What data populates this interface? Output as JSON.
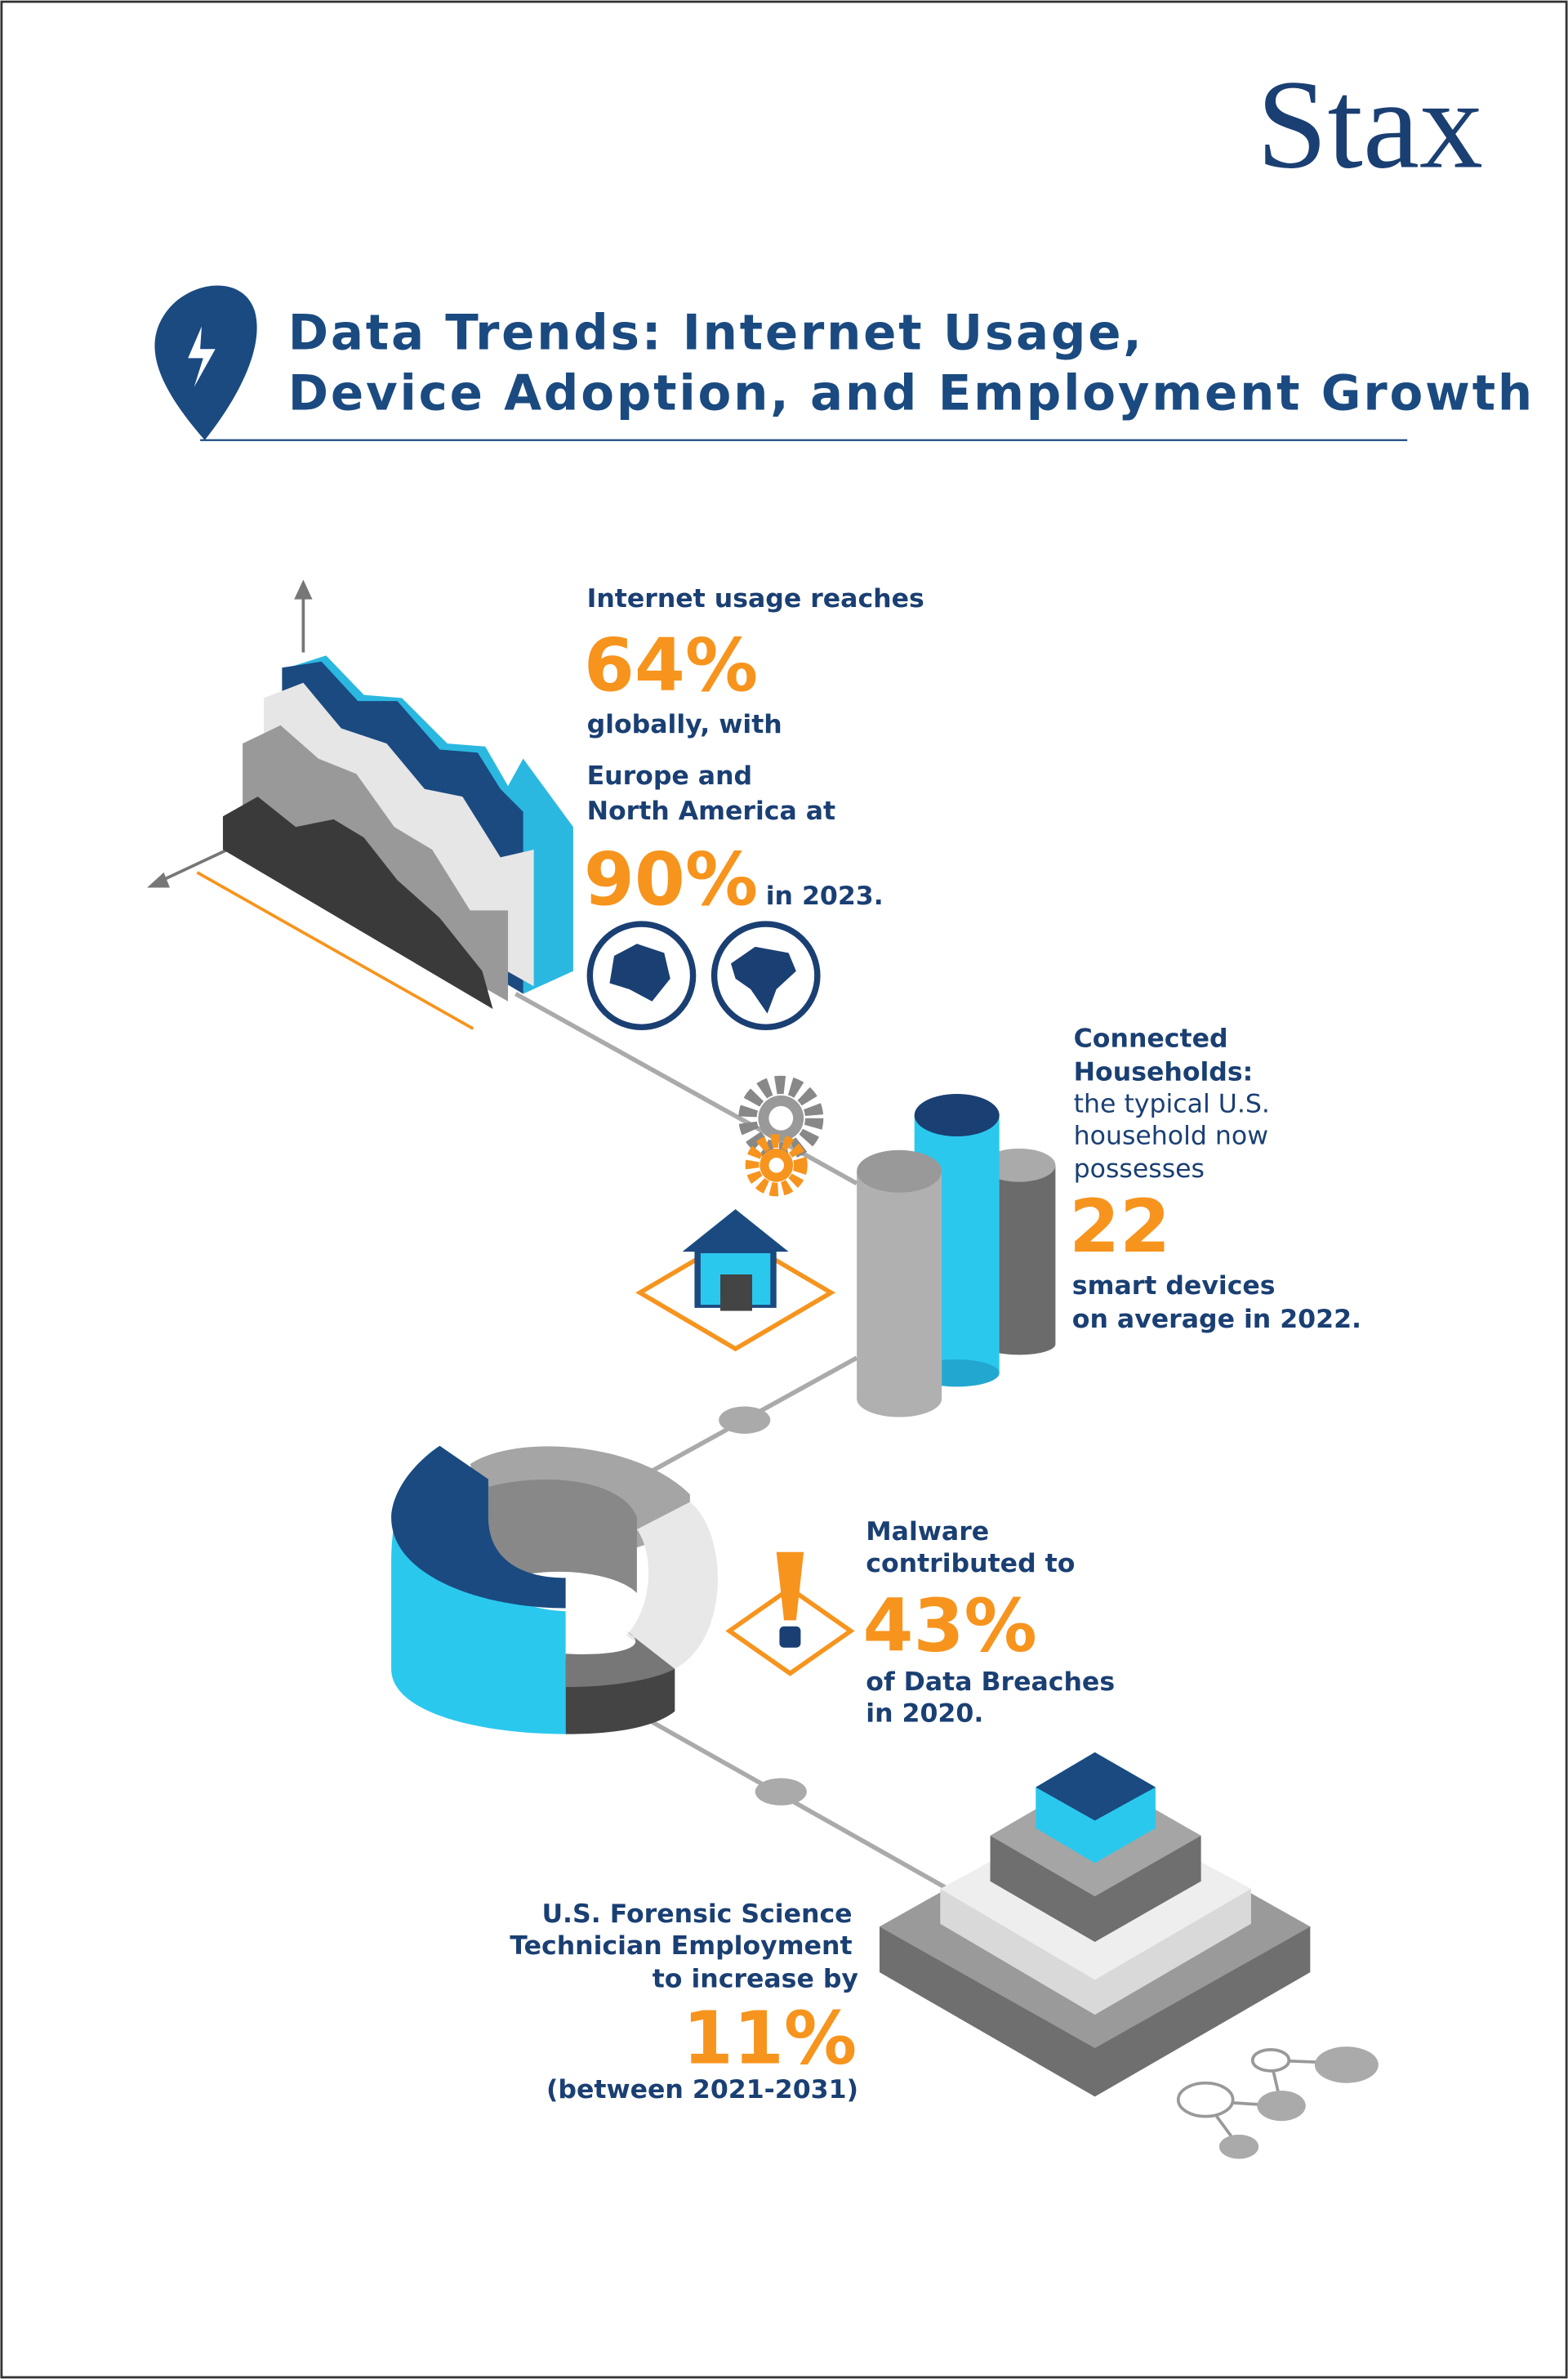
{
  "brand": {
    "logo": "Stax"
  },
  "header": {
    "title_lines": [
      "Data Trends: Internet Usage,",
      "Device Adoption, and Employment Growth"
    ]
  },
  "internet": {
    "intro": "Internet usage reaches",
    "global_value": "64%",
    "middle": "globally, with",
    "region_lines": [
      "Europe and",
      "North America at"
    ],
    "region_value": "90%",
    "year": "in 2023."
  },
  "households": {
    "heading_lines": [
      "Connected",
      "Households:"
    ],
    "body_lines": [
      "the typical U.S.",
      "household now",
      "possesses"
    ],
    "value": "22",
    "tail_lines": [
      "smart devices",
      "on average in 2022."
    ]
  },
  "malware": {
    "lines": [
      "Malware",
      "contributed to"
    ],
    "value": "43%",
    "tail_lines": [
      "of Data Breaches",
      "in 2020."
    ]
  },
  "employment": {
    "lines": [
      "U.S. Forensic Science",
      "Technician Employment",
      "to increase by"
    ],
    "value": "11%",
    "period": "(between 2021-2031)"
  }
}
